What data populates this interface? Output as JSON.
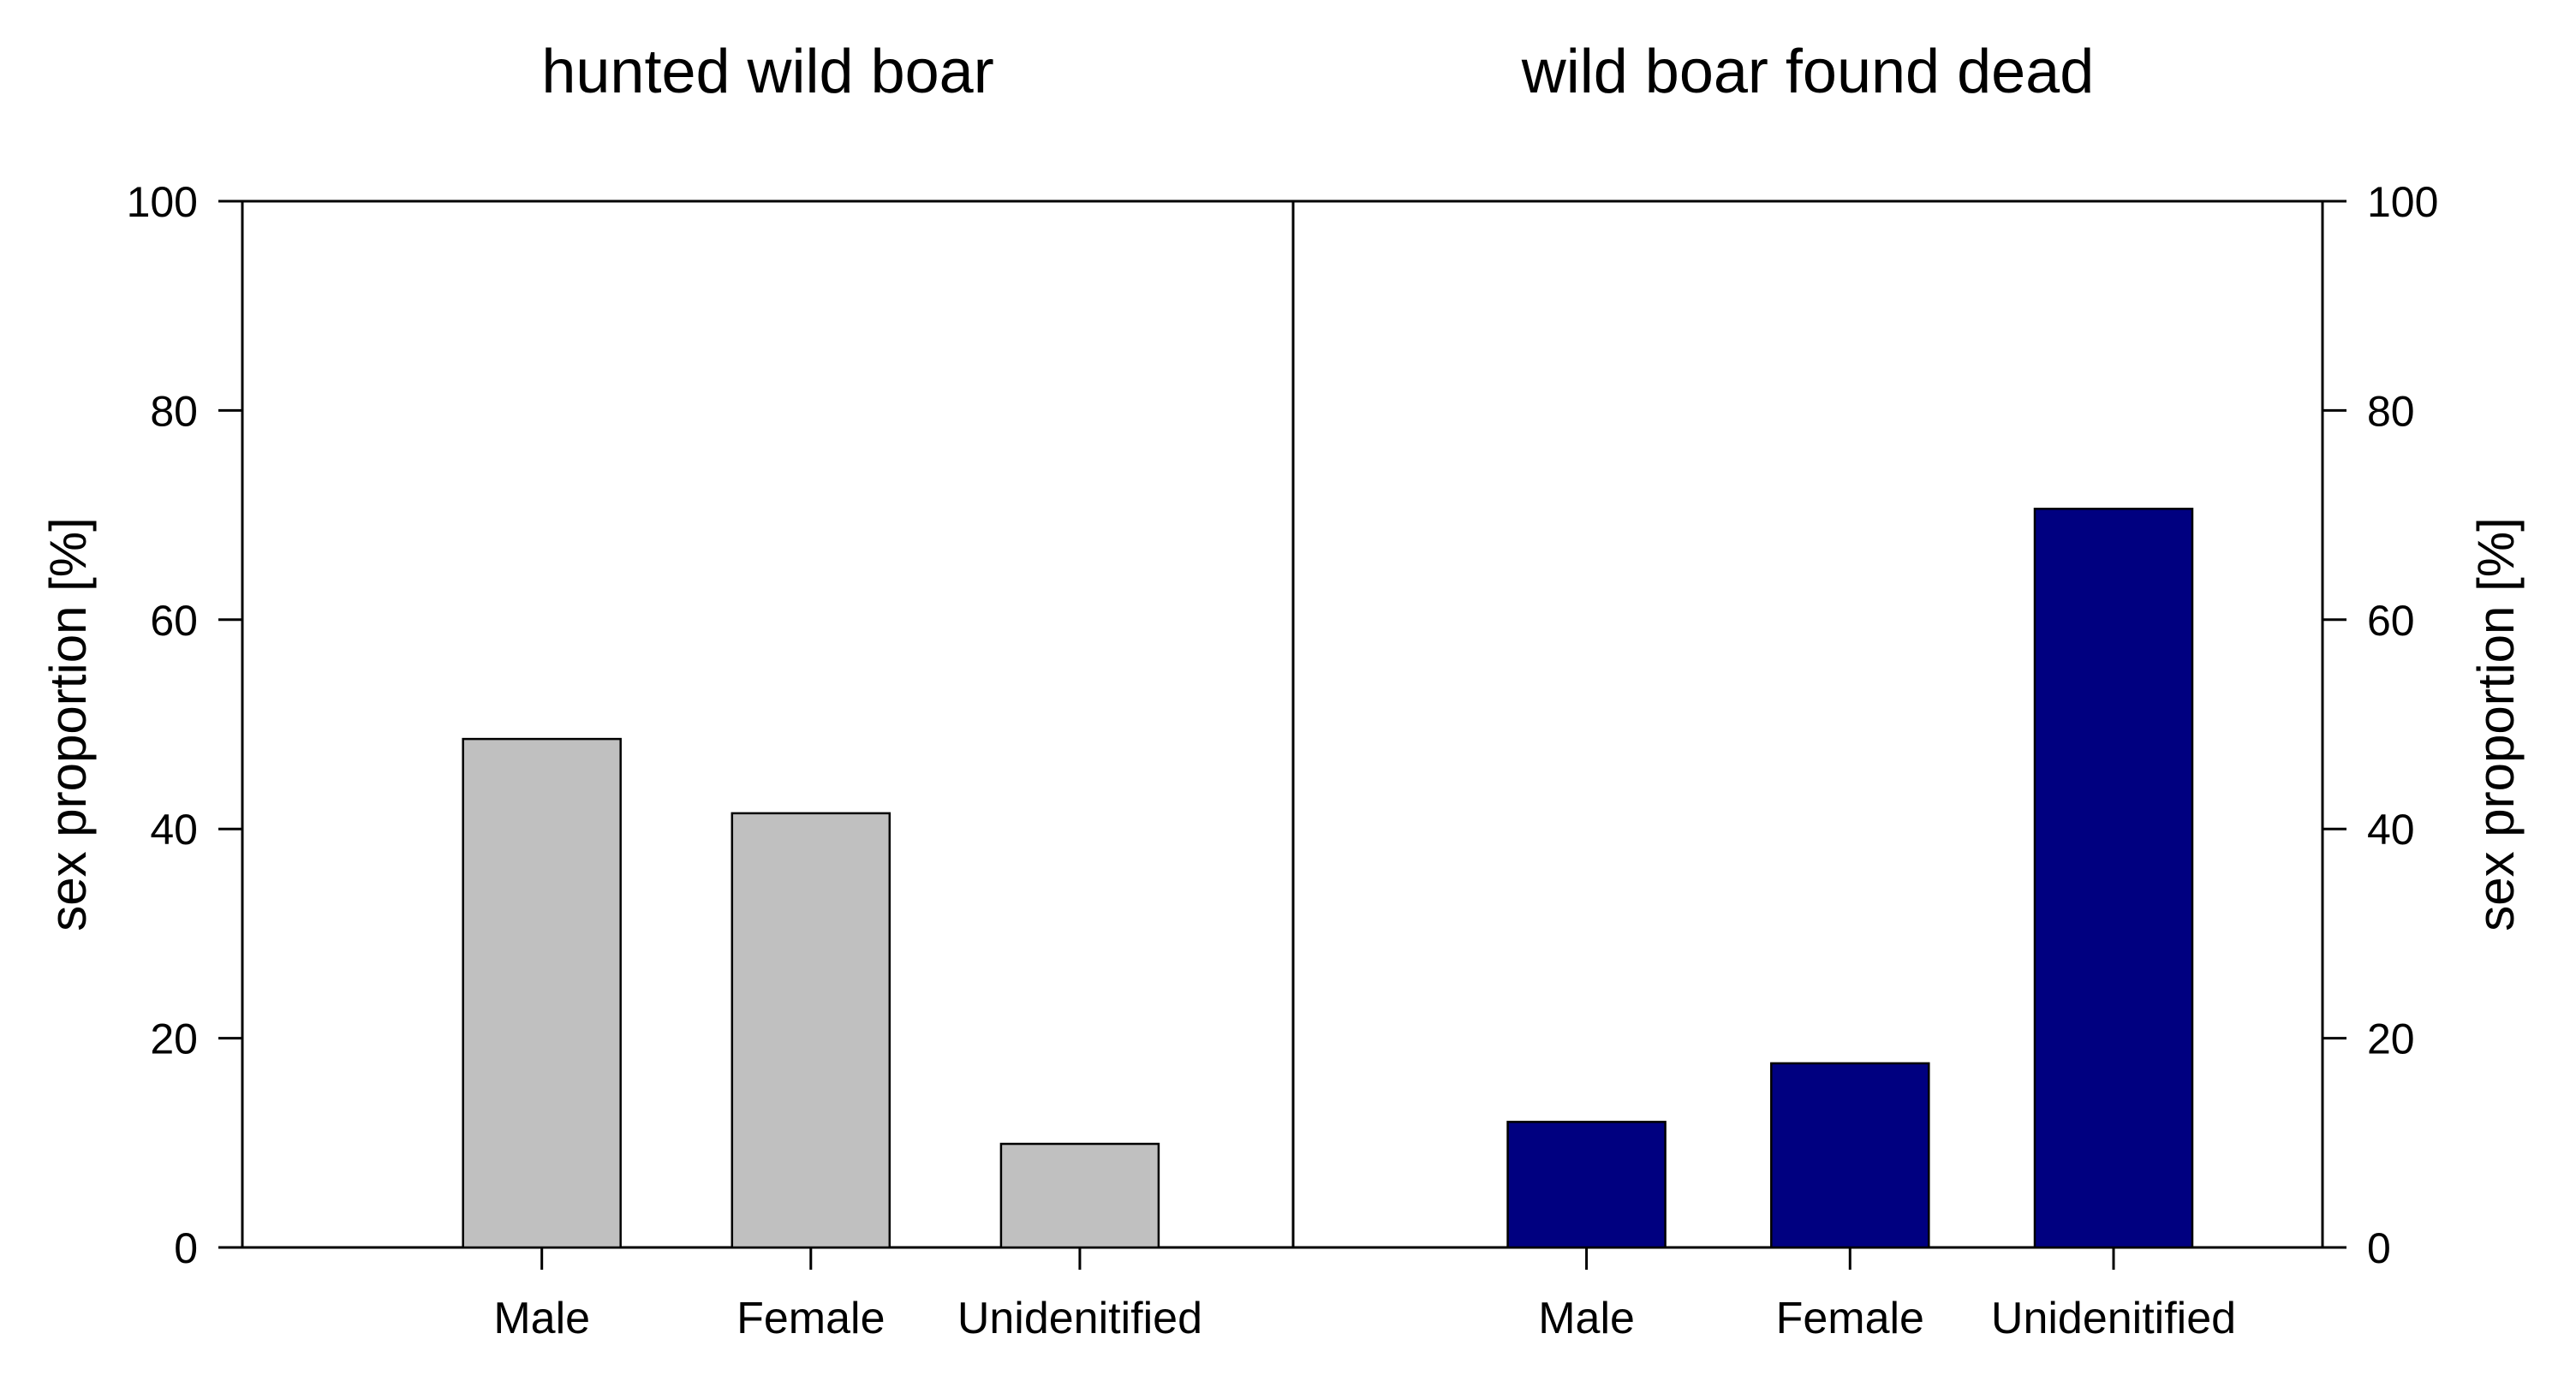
{
  "chart_data": [
    {
      "type": "bar",
      "title": "hunted wild boar",
      "categories": [
        "Male",
        "Female",
        "Unidenitified"
      ],
      "values": [
        48.6,
        41.5,
        9.9
      ],
      "ylabel": "sex proportion [%]",
      "ylim": [
        0,
        100
      ],
      "yticks": [
        "0",
        "20",
        "40",
        "60",
        "80",
        "100"
      ],
      "y_axis_side": "left",
      "bar_color": "#c0c0c0",
      "grid": false
    },
    {
      "type": "bar",
      "title": "wild boar found dead",
      "categories": [
        "Male",
        "Female",
        "Unidenitified"
      ],
      "values": [
        12.0,
        17.6,
        70.6
      ],
      "ylabel": "sex proportion [%]",
      "ylim": [
        0,
        100
      ],
      "yticks": [
        "0",
        "20",
        "40",
        "60",
        "80",
        "100"
      ],
      "y_axis_side": "right",
      "bar_color": "#000080",
      "grid": false
    }
  ]
}
